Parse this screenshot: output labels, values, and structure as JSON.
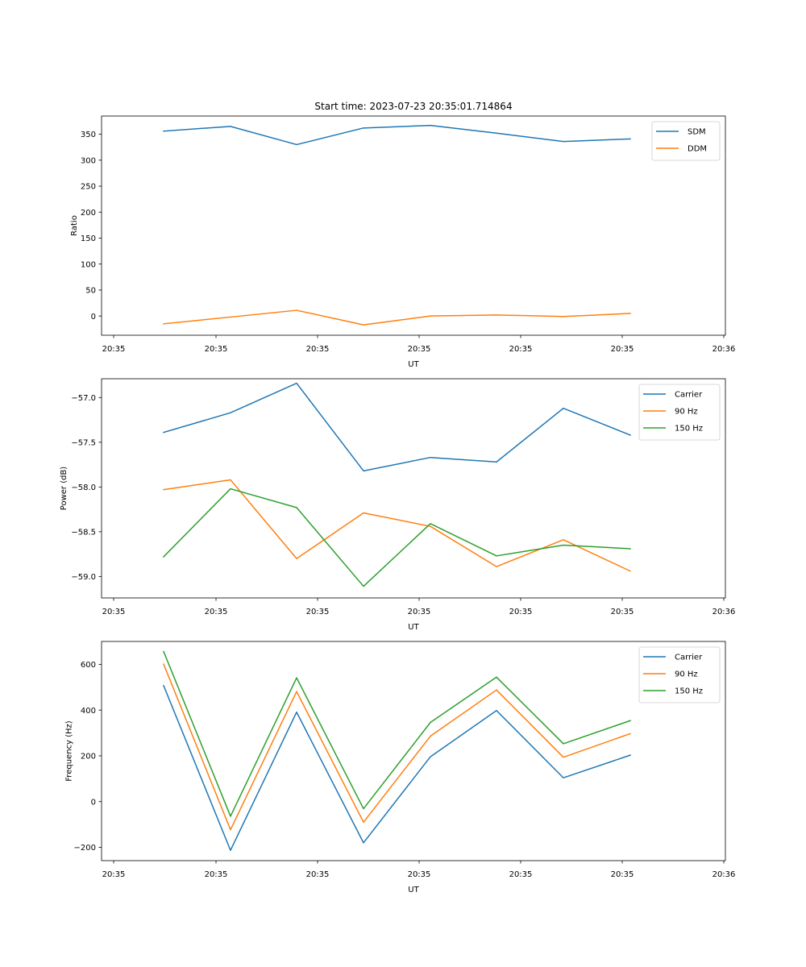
{
  "chart_data": [
    {
      "type": "line",
      "title": "Start time: 2023-07-23 20:35:01.714864",
      "xlabel": "UT",
      "ylabel": "Ratio",
      "x_tick_labels": [
        "20:35",
        "20:35",
        "20:35",
        "20:35",
        "20:35",
        "20:35",
        "20:35",
        "20:36"
      ],
      "y_ticks": [
        0,
        50,
        100,
        150,
        200,
        250,
        300,
        350
      ],
      "ylim": [
        -37,
        385
      ],
      "legend_position": "top-right",
      "series": [
        {
          "name": "SDM",
          "color": "#1f77b4",
          "values": [
            356,
            365,
            330,
            362,
            367,
            352,
            336,
            341
          ]
        },
        {
          "name": "DDM",
          "color": "#ff7f0e",
          "values": [
            -15,
            -2,
            11,
            -17,
            0,
            2,
            -1,
            5
          ]
        }
      ]
    },
    {
      "type": "line",
      "title": "",
      "xlabel": "UT",
      "ylabel": "Power (dB)",
      "x_tick_labels": [
        "20:35",
        "20:35",
        "20:35",
        "20:35",
        "20:35",
        "20:35",
        "20:35",
        "20:36"
      ],
      "y_ticks": [
        -59.0,
        -58.5,
        -58.0,
        -57.5,
        -57.0
      ],
      "y_tick_labels": [
        "−59.0",
        "−58.5",
        "−58.0",
        "−57.5",
        "−57.0"
      ],
      "ylim": [
        -59.24,
        -56.79
      ],
      "legend_position": "top-right",
      "series": [
        {
          "name": "Carrier",
          "color": "#1f77b4",
          "values": [
            -57.39,
            -57.17,
            -56.84,
            -57.82,
            -57.67,
            -57.72,
            -57.12,
            -57.42
          ]
        },
        {
          "name": "90 Hz",
          "color": "#ff7f0e",
          "values": [
            -58.03,
            -57.92,
            -58.8,
            -58.29,
            -58.44,
            -58.89,
            -58.59,
            -58.94
          ]
        },
        {
          "name": "150 Hz",
          "color": "#2ca02c",
          "values": [
            -58.78,
            -58.02,
            -58.23,
            -59.11,
            -58.41,
            -58.77,
            -58.65,
            -58.69
          ]
        }
      ]
    },
    {
      "type": "line",
      "title": "",
      "xlabel": "UT",
      "ylabel": "Frequency (Hz)",
      "x_tick_labels": [
        "20:35",
        "20:35",
        "20:35",
        "20:35",
        "20:35",
        "20:35",
        "20:35",
        "20:36"
      ],
      "y_ticks": [
        -200,
        0,
        200,
        400,
        600
      ],
      "y_tick_labels": [
        "−200",
        "0",
        "200",
        "400",
        "600"
      ],
      "ylim": [
        -258,
        700
      ],
      "legend_position": "top-right",
      "series": [
        {
          "name": "Carrier",
          "color": "#1f77b4",
          "values": [
            507,
            -213,
            391,
            -180,
            196,
            398,
            104,
            203
          ]
        },
        {
          "name": "90 Hz",
          "color": "#ff7f0e",
          "values": [
            601,
            -123,
            481,
            -90,
            286,
            488,
            194,
            297
          ]
        },
        {
          "name": "150 Hz",
          "color": "#2ca02c",
          "values": [
            656,
            -64,
            541,
            -31,
            346,
            544,
            253,
            354
          ]
        }
      ]
    }
  ]
}
